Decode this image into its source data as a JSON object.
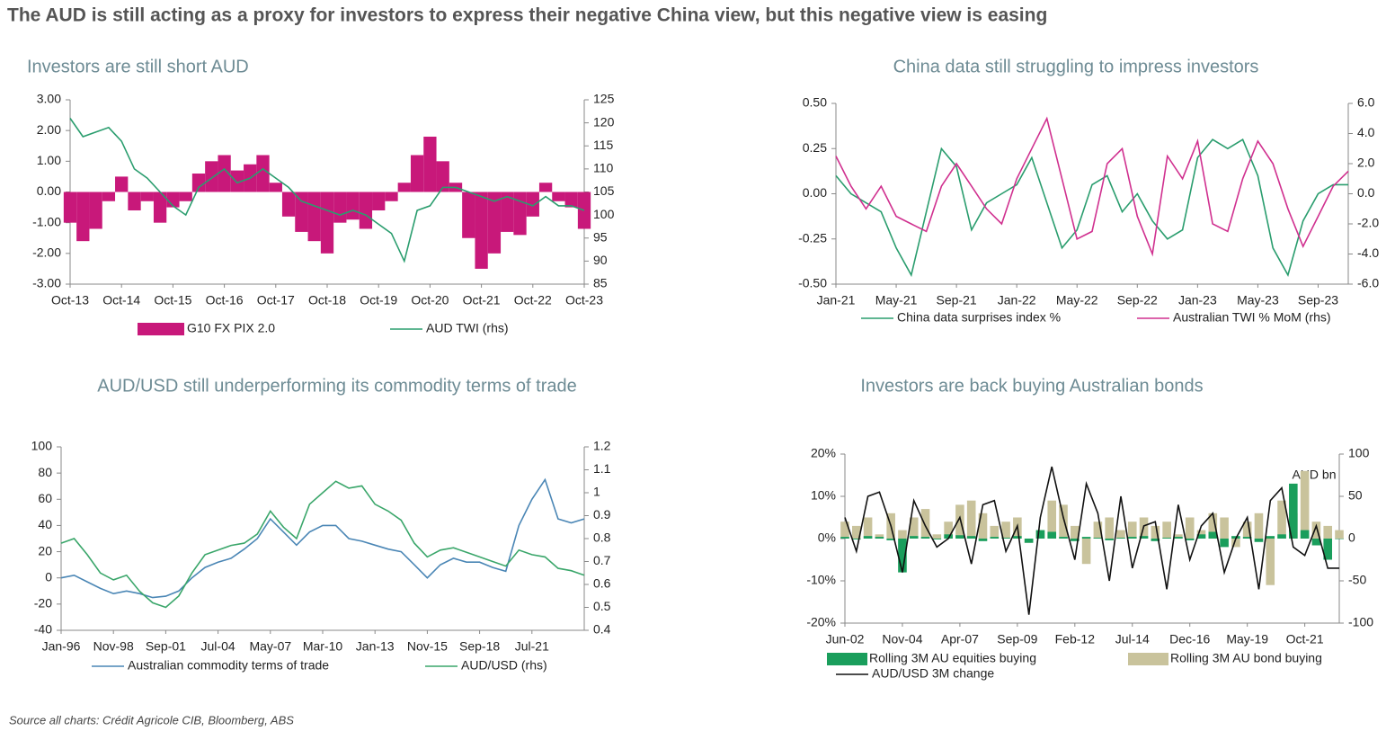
{
  "title": "The AUD is still acting as a proxy for investors to express their negative China view, but this negative view is easing",
  "source": "Source all charts: Crédit Agricole CIB, Bloomberg, ABS",
  "chart_data": [
    {
      "type": "combo",
      "title": "Investors are still short AUD",
      "categories": [
        "Oct-13",
        null,
        null,
        null,
        "Oct-14",
        null,
        null,
        null,
        "Oct-15",
        null,
        null,
        null,
        "Oct-16",
        null,
        null,
        null,
        "Oct-17",
        null,
        null,
        null,
        "Oct-18",
        null,
        null,
        null,
        "Oct-19",
        null,
        null,
        null,
        "Oct-20",
        null,
        null,
        null,
        "Oct-21",
        null,
        null,
        null,
        "Oct-22",
        null,
        null,
        null,
        "Oct-23"
      ],
      "series": [
        {
          "name": "G10 FX PIX 2.0",
          "type": "bar",
          "color": "#c8187a",
          "values": [
            -1.0,
            -1.6,
            -1.2,
            -0.3,
            0.5,
            -0.6,
            -0.3,
            -1.0,
            -0.5,
            -0.3,
            0.6,
            1.0,
            1.2,
            0.7,
            0.9,
            1.2,
            0.3,
            -0.8,
            -1.3,
            -1.6,
            -2.0,
            -1.0,
            -0.9,
            -1.2,
            -0.6,
            -0.3,
            0.3,
            1.2,
            1.8,
            1.0,
            0.3,
            -1.5,
            -2.5,
            -2.0,
            -1.3,
            -1.4,
            -0.8,
            0.3,
            -0.3,
            -0.5,
            -1.2
          ]
        },
        {
          "name": "AUD TWI (rhs)",
          "type": "line",
          "axis": "y2",
          "color": "#2a9d6e",
          "values": [
            121,
            117,
            118,
            119,
            116,
            110,
            108,
            105,
            102,
            100,
            106,
            108,
            110,
            107,
            108,
            110,
            108,
            106,
            103,
            102,
            101,
            100,
            101,
            100,
            98,
            96,
            90,
            101,
            102,
            106,
            106,
            105,
            104,
            103,
            104,
            103,
            102,
            104,
            102,
            102,
            101
          ]
        }
      ],
      "ylim": [
        -3,
        3
      ],
      "yticks": [
        {
          "value": 3,
          "label": "3.00"
        },
        {
          "value": 2,
          "label": "2.00"
        },
        {
          "value": 1,
          "label": "1.00"
        },
        {
          "value": 0,
          "label": "0.00"
        },
        {
          "value": -1,
          "label": "-1.00"
        },
        {
          "value": -2,
          "label": "-2.00"
        },
        {
          "value": -3,
          "label": "-3.00"
        }
      ],
      "y2lim": [
        85,
        125
      ],
      "y2ticks": [
        85,
        90,
        95,
        100,
        105,
        110,
        115,
        120,
        125
      ]
    },
    {
      "type": "combo",
      "title": "China data still struggling to impress investors",
      "categories": [
        "Jan-21",
        null,
        null,
        null,
        "May-21",
        null,
        null,
        null,
        "Sep-21",
        null,
        null,
        null,
        "Jan-22",
        null,
        null,
        null,
        "May-22",
        null,
        null,
        null,
        "Sep-22",
        null,
        null,
        null,
        "Jan-23",
        null,
        null,
        null,
        "May-23",
        null,
        null,
        null,
        "Sep-23",
        null,
        null
      ],
      "series": [
        {
          "name": "China data surprises index %",
          "type": "line",
          "color": "#2a9d6e",
          "values": [
            0.1,
            0.0,
            -0.05,
            -0.1,
            -0.3,
            -0.45,
            -0.1,
            0.25,
            0.15,
            -0.2,
            -0.05,
            0.0,
            0.05,
            0.2,
            -0.05,
            -0.3,
            -0.2,
            0.05,
            0.1,
            -0.1,
            0.0,
            -0.15,
            -0.25,
            -0.2,
            0.2,
            0.3,
            0.25,
            0.3,
            0.1,
            -0.3,
            -0.45,
            -0.15,
            0.0,
            0.05,
            0.05
          ]
        },
        {
          "name": "Australian TWI % MoM (rhs)",
          "type": "line",
          "axis": "y2",
          "color": "#d0308f",
          "values": [
            2.5,
            0.5,
            -1.0,
            0.5,
            -1.5,
            -2.0,
            -2.5,
            0.5,
            2.0,
            0.5,
            -1.0,
            -2.0,
            1.0,
            3.0,
            5.0,
            1.0,
            -3.0,
            -2.5,
            2.0,
            3.0,
            -1.5,
            -4.0,
            2.5,
            1.0,
            3.5,
            -2.0,
            -2.5,
            1.0,
            3.5,
            2.0,
            -1.0,
            -3.5,
            -1.5,
            0.5,
            1.5
          ]
        }
      ],
      "ylim": [
        -0.5,
        0.5
      ],
      "yticks": [
        {
          "value": 0.5,
          "label": "0.50"
        },
        {
          "value": 0.25,
          "label": "0.25"
        },
        {
          "value": 0,
          "label": "0.00"
        },
        {
          "value": -0.25,
          "label": "-0.25"
        },
        {
          "value": -0.5,
          "label": "-0.50"
        }
      ],
      "y2lim": [
        -6,
        6
      ],
      "y2ticks": [
        {
          "value": 6,
          "label": "6.0"
        },
        {
          "value": 4,
          "label": "4.0"
        },
        {
          "value": 2,
          "label": "2.0"
        },
        {
          "value": 0,
          "label": "0.0"
        },
        {
          "value": -2,
          "label": "-2.0"
        },
        {
          "value": -4,
          "label": "-4.0"
        },
        {
          "value": -6,
          "label": "-6.0"
        }
      ]
    },
    {
      "type": "combo",
      "title": "AUD/USD still underperforming its commodity terms of trade",
      "categories": [
        "Jan-96",
        null,
        null,
        null,
        "Nov-98",
        null,
        null,
        null,
        "Sep-01",
        null,
        null,
        null,
        "Jul-04",
        null,
        null,
        null,
        "May-07",
        null,
        null,
        null,
        "Mar-10",
        null,
        null,
        null,
        "Jan-13",
        null,
        null,
        null,
        "Nov-15",
        null,
        null,
        null,
        "Sep-18",
        null,
        null,
        null,
        "Jul-21",
        null,
        null,
        null,
        null
      ],
      "series": [
        {
          "name": "Australian commodity terms of trade",
          "type": "line",
          "color": "#4a86b5",
          "values": [
            0,
            2,
            -3,
            -8,
            -12,
            -10,
            -12,
            -15,
            -14,
            -10,
            0,
            8,
            12,
            15,
            22,
            30,
            45,
            35,
            25,
            35,
            40,
            40,
            30,
            28,
            25,
            22,
            20,
            10,
            0,
            10,
            15,
            12,
            12,
            8,
            5,
            40,
            60,
            75,
            45,
            42,
            45
          ]
        },
        {
          "name": "AUD/USD (rhs)",
          "type": "line",
          "axis": "y2",
          "color": "#3aa66a",
          "values": [
            0.78,
            0.8,
            0.73,
            0.65,
            0.62,
            0.64,
            0.57,
            0.52,
            0.5,
            0.55,
            0.65,
            0.73,
            0.75,
            0.77,
            0.78,
            0.82,
            0.92,
            0.85,
            0.8,
            0.95,
            1.0,
            1.05,
            1.02,
            1.03,
            0.95,
            0.92,
            0.88,
            0.78,
            0.72,
            0.75,
            0.76,
            0.74,
            0.72,
            0.7,
            0.68,
            0.75,
            0.73,
            0.72,
            0.67,
            0.66,
            0.64
          ]
        }
      ],
      "ylim": [
        -40,
        100
      ],
      "yticks": [
        -40,
        -20,
        0,
        20,
        40,
        60,
        80,
        100
      ],
      "y2lim": [
        0.4,
        1.2
      ],
      "y2ticks": [
        0.4,
        0.5,
        0.6,
        0.7,
        0.8,
        0.9,
        1,
        1.1,
        1.2
      ]
    },
    {
      "type": "combo",
      "title": "Investors are back buying Australian bonds",
      "annotation": "AUD bn",
      "categories": [
        "Jun-02",
        null,
        null,
        null,
        null,
        "Nov-04",
        null,
        null,
        null,
        null,
        "Apr-07",
        null,
        null,
        null,
        null,
        "Sep-09",
        null,
        null,
        null,
        null,
        "Feb-12",
        null,
        null,
        null,
        null,
        "Jul-14",
        null,
        null,
        null,
        null,
        "Dec-16",
        null,
        null,
        null,
        null,
        "May-19",
        null,
        null,
        null,
        null,
        "Oct-21",
        null,
        null,
        null
      ],
      "series": [
        {
          "name": "Rolling 3M AU bond buying",
          "type": "bar",
          "axis": "y2",
          "color": "#c9c39c",
          "values": [
            20,
            15,
            25,
            5,
            30,
            10,
            25,
            35,
            5,
            20,
            40,
            45,
            30,
            15,
            20,
            25,
            -5,
            10,
            45,
            40,
            15,
            -30,
            20,
            25,
            10,
            20,
            25,
            15,
            20,
            5,
            25,
            10,
            30,
            25,
            -10,
            20,
            30,
            -55,
            45,
            30,
            80,
            20,
            15,
            10
          ]
        },
        {
          "name": "Rolling 3M AU equities buying",
          "type": "bar",
          "axis": "y2",
          "color": "#1a9e5c",
          "values": [
            2,
            -1,
            3,
            2,
            -2,
            -40,
            3,
            2,
            -1,
            5,
            4,
            3,
            -3,
            2,
            1,
            3,
            -5,
            10,
            8,
            2,
            -3,
            2,
            1,
            -2,
            1,
            2,
            3,
            -3,
            1,
            2,
            -2,
            5,
            8,
            -10,
            3,
            2,
            -4,
            3,
            5,
            65,
            10,
            -8,
            -25,
            0
          ]
        },
        {
          "name": "AUD/USD 3M change",
          "type": "line",
          "color": "#111111",
          "values": [
            5,
            -3,
            10,
            11,
            3,
            -8,
            9,
            3,
            -2,
            0,
            5,
            -6,
            8,
            9,
            -3,
            3,
            -18,
            5,
            17,
            5,
            -5,
            13,
            6,
            -10,
            10,
            -7,
            3,
            4,
            -12,
            8,
            -5,
            3,
            6,
            -8,
            0,
            5,
            -12,
            9,
            12,
            -2,
            -4,
            3,
            -7,
            -7
          ]
        }
      ],
      "ylim": [
        -20,
        20
      ],
      "yticks": [
        {
          "value": 20,
          "label": "20%"
        },
        {
          "value": 10,
          "label": "10%"
        },
        {
          "value": 0,
          "label": "0%"
        },
        {
          "value": -10,
          "label": "-10%"
        },
        {
          "value": -20,
          "label": "-20%"
        }
      ],
      "y2lim": [
        -100,
        100
      ],
      "y2ticks": [
        -100,
        -50,
        0,
        50,
        100
      ]
    }
  ]
}
